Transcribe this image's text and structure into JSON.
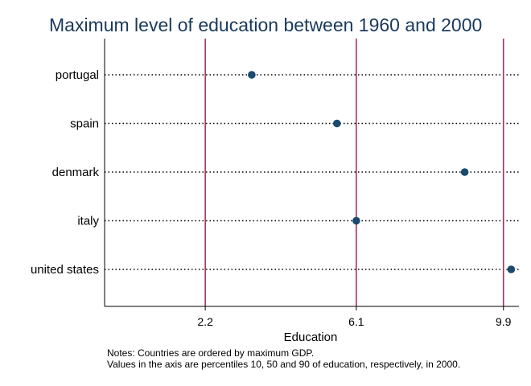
{
  "chart_data": {
    "type": "scatter",
    "title": "Maximum level of education between 1960 and 2000",
    "xlabel": "Education",
    "ylabel": "",
    "categories": [
      "portugal",
      "spain",
      "denmark",
      "italy",
      "united states"
    ],
    "values": [
      3.4,
      5.6,
      8.9,
      6.1,
      10.1
    ],
    "xlim": [
      -0.4,
      10.3
    ],
    "xticks": [
      {
        "value": 2.2,
        "label": "2.2"
      },
      {
        "value": 6.1,
        "label": "6.1"
      },
      {
        "value": 9.9,
        "label": "9.9"
      }
    ],
    "reference_lines": [
      2.2,
      6.1,
      9.9
    ],
    "grid": false,
    "colors": {
      "point": "#1a4a6e",
      "reference_line": "#a8325e",
      "dotted_line": "#000000",
      "title": "#1a3a5c"
    },
    "notes": [
      "Notes: Countries are ordered by maximum GDP.",
      "Values in the axis are percentiles 10, 50 and 90 of education, respectively, in 2000."
    ]
  }
}
